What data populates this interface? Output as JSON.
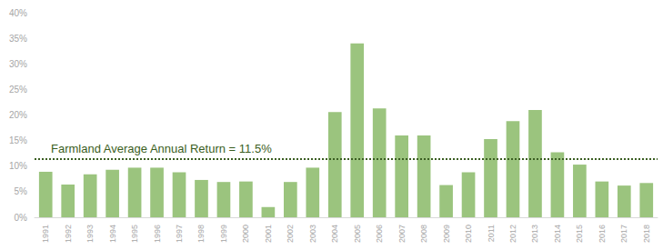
{
  "chart_data": {
    "type": "bar",
    "categories": [
      "1991",
      "1992",
      "1993",
      "1994",
      "1995",
      "1996",
      "1997",
      "1998",
      "1999",
      "2000",
      "2001",
      "2002",
      "2003",
      "2004",
      "2005",
      "2006",
      "2007",
      "2008",
      "2009",
      "2010",
      "2011",
      "2012",
      "2013",
      "2014",
      "2015",
      "2016",
      "2017",
      "2018"
    ],
    "values": [
      8.9,
      6.4,
      8.4,
      9.3,
      9.7,
      9.7,
      8.8,
      7.3,
      6.9,
      7.0,
      2.0,
      6.9,
      9.7,
      20.6,
      34.0,
      21.3,
      16.0,
      16.0,
      6.3,
      8.8,
      15.3,
      18.8,
      21.0,
      12.7,
      10.3,
      7.0,
      6.2,
      6.7
    ],
    "color": "#9bc47e",
    "ylim": [
      0,
      40
    ],
    "yticks": [
      {
        "value": 0,
        "label": "0%"
      },
      {
        "value": 5,
        "label": "5%"
      },
      {
        "value": 10,
        "label": "10%"
      },
      {
        "value": 15,
        "label": "15%"
      },
      {
        "value": 20,
        "label": "20%"
      },
      {
        "value": 25,
        "label": "25%"
      },
      {
        "value": 30,
        "label": "30%"
      },
      {
        "value": 35,
        "label": "35%"
      },
      {
        "value": 40,
        "label": "40%"
      }
    ],
    "grid": false,
    "reference_line": {
      "value": 11.5,
      "label": "Farmland Average Annual Return = 11.5%",
      "color": "#3b5e22",
      "line_style": "dotted"
    }
  }
}
